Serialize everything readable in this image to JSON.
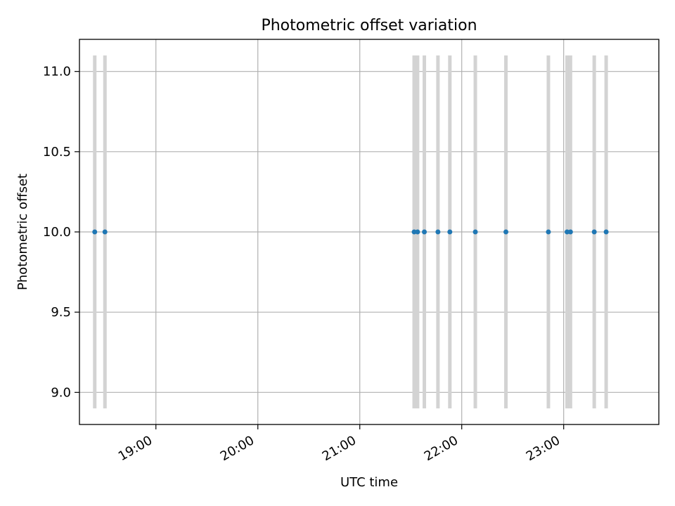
{
  "chart_data": {
    "type": "scatter",
    "title": "Photometric offset variation",
    "xlabel": "UTC time",
    "ylabel": "Photometric offset",
    "x_unit": "UTC hour",
    "xlim": [
      "18:15",
      "23:56"
    ],
    "ylim": [
      8.8,
      11.2
    ],
    "grid": true,
    "x_ticks": [
      "19:00",
      "20:00",
      "21:00",
      "22:00",
      "23:00"
    ],
    "y_ticks": [
      "9.0",
      "9.5",
      "10.0",
      "10.5",
      "11.0"
    ],
    "span_color": "#d3d3d3",
    "point_color": "#1f77b4",
    "span_range": [
      8.9,
      11.1
    ],
    "points": [
      {
        "x": "18:24",
        "y": 10.0
      },
      {
        "x": "18:30",
        "y": 10.0
      },
      {
        "x": "21:32",
        "y": 10.0
      },
      {
        "x": "21:34",
        "y": 10.0
      },
      {
        "x": "21:38",
        "y": 10.0
      },
      {
        "x": "21:46",
        "y": 10.0
      },
      {
        "x": "21:53",
        "y": 10.0
      },
      {
        "x": "22:08",
        "y": 10.0
      },
      {
        "x": "22:26",
        "y": 10.0
      },
      {
        "x": "22:51",
        "y": 10.0
      },
      {
        "x": "23:02",
        "y": 10.0
      },
      {
        "x": "23:04",
        "y": 10.0
      },
      {
        "x": "23:18",
        "y": 10.0
      },
      {
        "x": "23:25",
        "y": 10.0
      }
    ]
  }
}
